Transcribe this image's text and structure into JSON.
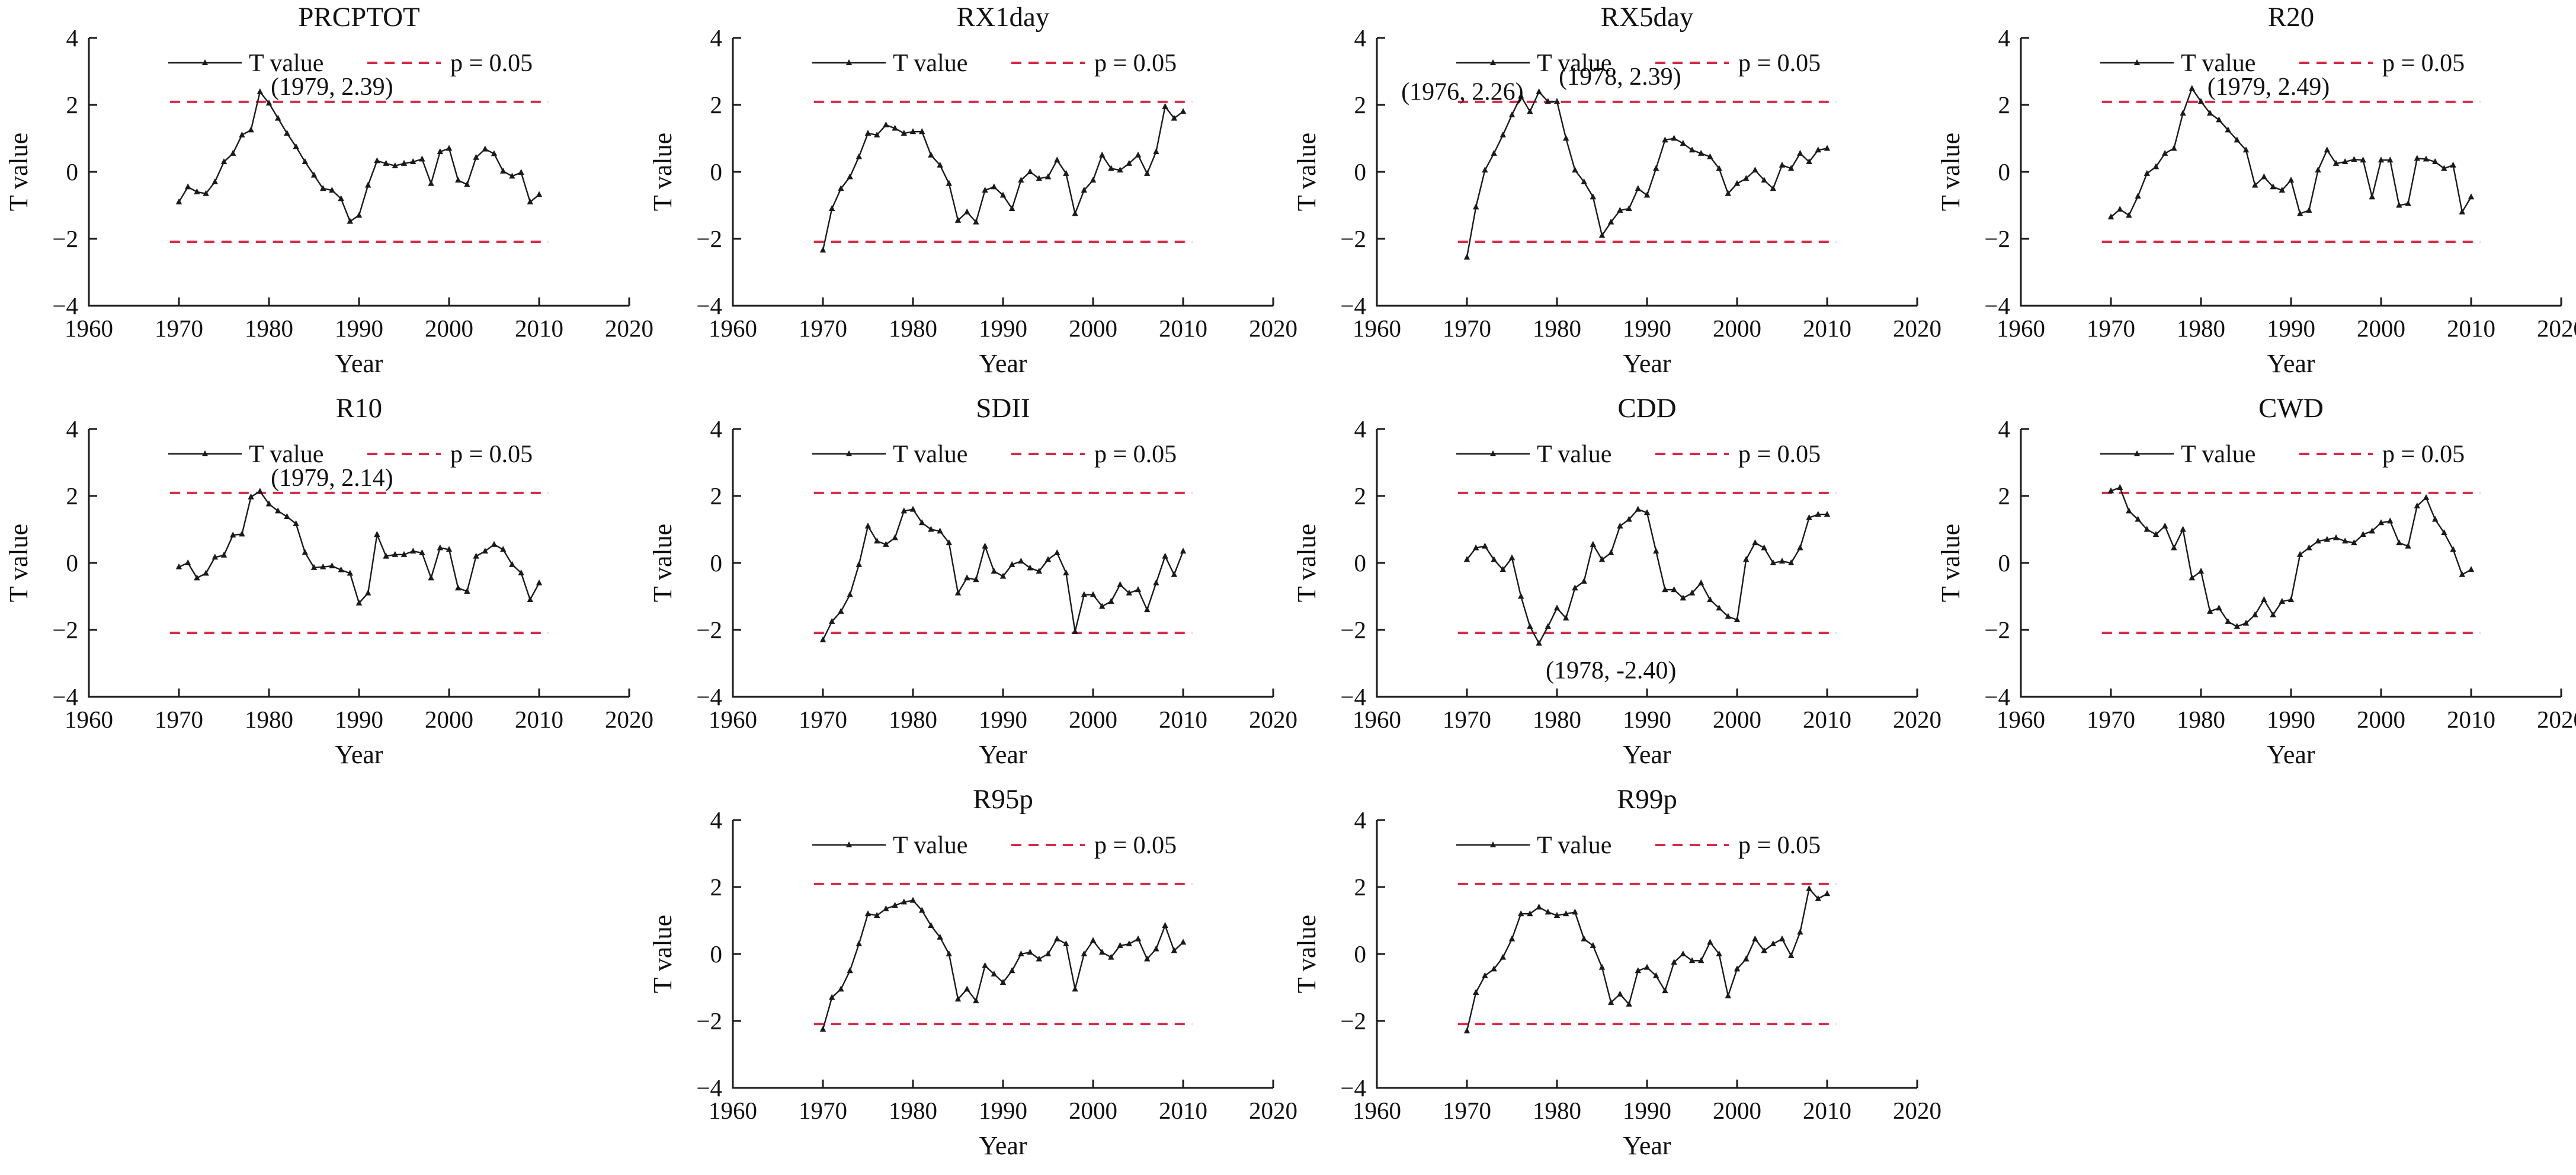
{
  "figure": {
    "xlabel": "Year",
    "ylabel": "T value",
    "xlim": [
      1960,
      2020
    ],
    "ylim": [
      -4,
      4
    ],
    "xticks": [
      1960,
      1970,
      1980,
      1990,
      2000,
      2010,
      2020
    ],
    "yticks": [
      -4,
      -2,
      0,
      2,
      4
    ],
    "legend": {
      "series_label": "T value",
      "threshold_label": "p = 0.05",
      "position": "top-center-inside"
    },
    "threshold_value": 2.09,
    "threshold_x_span": [
      1969,
      2011
    ],
    "grid": "off",
    "colors": {
      "line": "#1a1a1a",
      "marker": "#1a1a1a",
      "threshold": "#d62b47",
      "text": "#111111",
      "background": "#ffffff"
    }
  },
  "chart_data": [
    {
      "type": "line",
      "title": "PRCPTOT",
      "row": 0,
      "col": 0,
      "x_start": 1970,
      "x_end": 2010,
      "values": [
        -0.9,
        -0.45,
        -0.6,
        -0.65,
        -0.3,
        0.3,
        0.55,
        1.1,
        1.25,
        2.39,
        2.05,
        1.6,
        1.15,
        0.75,
        0.3,
        -0.1,
        -0.5,
        -0.55,
        -0.8,
        -1.48,
        -1.3,
        -0.4,
        0.33,
        0.25,
        0.18,
        0.25,
        0.3,
        0.38,
        -0.35,
        0.6,
        0.7,
        -0.25,
        -0.38,
        0.43,
        0.68,
        0.54,
        0.02,
        -0.13,
        -0.02,
        -0.9,
        -0.68
      ],
      "annotations": [
        {
          "text": "(1979, 2.39)",
          "x": 1987,
          "y": 2.55
        }
      ]
    },
    {
      "type": "line",
      "title": "RX1day",
      "row": 0,
      "col": 1,
      "x_start": 1970,
      "x_end": 2010,
      "values": [
        -2.34,
        -1.1,
        -0.5,
        -0.15,
        0.45,
        1.15,
        1.1,
        1.4,
        1.3,
        1.15,
        1.2,
        1.2,
        0.5,
        0.2,
        -0.35,
        -1.45,
        -1.2,
        -1.5,
        -0.55,
        -0.45,
        -0.7,
        -1.1,
        -0.25,
        0.0,
        -0.2,
        -0.15,
        0.35,
        -0.05,
        -1.25,
        -0.55,
        -0.25,
        0.5,
        0.1,
        0.05,
        0.25,
        0.5,
        -0.05,
        0.6,
        1.95,
        1.6,
        1.8
      ],
      "annotations": []
    },
    {
      "type": "line",
      "title": "RX5day",
      "row": 0,
      "col": 2,
      "x_start": 1970,
      "x_end": 2010,
      "values": [
        -2.55,
        -1.05,
        0.05,
        0.55,
        1.1,
        1.7,
        2.26,
        1.8,
        2.39,
        2.1,
        2.1,
        1.0,
        0.05,
        -0.3,
        -0.75,
        -1.9,
        -1.5,
        -1.15,
        -1.1,
        -0.5,
        -0.7,
        0.1,
        0.95,
        1.0,
        0.85,
        0.65,
        0.55,
        0.45,
        0.1,
        -0.65,
        -0.35,
        -0.2,
        0.05,
        -0.25,
        -0.5,
        0.2,
        0.1,
        0.55,
        0.3,
        0.65,
        0.7
      ],
      "annotations": [
        {
          "text": "(1976, 2.26)",
          "x": 1969.5,
          "y": 2.4
        },
        {
          "text": "(1978, 2.39)",
          "x": 1987,
          "y": 2.85
        }
      ]
    },
    {
      "type": "line",
      "title": "R20",
      "row": 0,
      "col": 3,
      "x_start": 1970,
      "x_end": 2010,
      "values": [
        -1.35,
        -1.12,
        -1.3,
        -0.73,
        -0.05,
        0.15,
        0.55,
        0.7,
        1.75,
        2.49,
        2.1,
        1.75,
        1.55,
        1.25,
        0.95,
        0.65,
        -0.4,
        -0.15,
        -0.45,
        -0.55,
        -0.25,
        -1.25,
        -1.15,
        0.05,
        0.65,
        0.25,
        0.3,
        0.37,
        0.35,
        -0.75,
        0.35,
        0.35,
        -1.0,
        -0.95,
        0.4,
        0.38,
        0.3,
        0.1,
        0.2,
        -1.2,
        -0.75
      ],
      "annotations": [
        {
          "text": "(1979, 2.49)",
          "x": 1987.5,
          "y": 2.55
        }
      ]
    },
    {
      "type": "line",
      "title": "R10",
      "row": 1,
      "col": 0,
      "x_start": 1970,
      "x_end": 2010,
      "values": [
        -0.12,
        0.0,
        -0.45,
        -0.31,
        0.17,
        0.23,
        0.83,
        0.86,
        1.97,
        2.14,
        1.76,
        1.55,
        1.38,
        1.17,
        0.31,
        -0.14,
        -0.12,
        -0.09,
        -0.21,
        -0.31,
        -1.2,
        -0.9,
        0.85,
        0.2,
        0.25,
        0.25,
        0.35,
        0.3,
        -0.45,
        0.45,
        0.4,
        -0.75,
        -0.85,
        0.2,
        0.35,
        0.55,
        0.4,
        -0.05,
        -0.3,
        -1.1,
        -0.6
      ],
      "annotations": [
        {
          "text": "(1979, 2.14)",
          "x": 1987,
          "y": 2.55
        }
      ]
    },
    {
      "type": "line",
      "title": "SDII",
      "row": 1,
      "col": 1,
      "x_start": 1970,
      "x_end": 2010,
      "values": [
        -2.3,
        -1.75,
        -1.45,
        -0.95,
        -0.05,
        1.1,
        0.65,
        0.55,
        0.75,
        1.55,
        1.6,
        1.2,
        1.0,
        0.95,
        0.6,
        -0.9,
        -0.45,
        -0.5,
        0.5,
        -0.25,
        -0.4,
        -0.05,
        0.05,
        -0.15,
        -0.25,
        0.1,
        0.3,
        -0.3,
        -2.05,
        -0.95,
        -0.95,
        -1.3,
        -1.15,
        -0.65,
        -0.9,
        -0.8,
        -1.4,
        -0.6,
        0.2,
        -0.35,
        0.35
      ],
      "annotations": []
    },
    {
      "type": "line",
      "title": "CDD",
      "row": 1,
      "col": 2,
      "x_start": 1970,
      "x_end": 2010,
      "values": [
        0.1,
        0.45,
        0.5,
        0.1,
        -0.2,
        0.15,
        -1.0,
        -1.9,
        -2.4,
        -1.9,
        -1.35,
        -1.65,
        -0.75,
        -0.55,
        0.55,
        0.1,
        0.3,
        1.1,
        1.3,
        1.6,
        1.5,
        0.35,
        -0.8,
        -0.8,
        -1.05,
        -0.9,
        -0.6,
        -1.1,
        -1.35,
        -1.6,
        -1.7,
        0.1,
        0.6,
        0.45,
        0.0,
        0.05,
        0.0,
        0.45,
        1.35,
        1.45,
        1.45
      ],
      "annotations": [
        {
          "text": "(1978, -2.40)",
          "x": 1986,
          "y": -3.2
        }
      ]
    },
    {
      "type": "line",
      "title": "CWD",
      "row": 1,
      "col": 3,
      "x_start": 1970,
      "x_end": 2010,
      "values": [
        2.15,
        2.25,
        1.55,
        1.3,
        1.0,
        0.85,
        1.1,
        0.45,
        1.0,
        -0.45,
        -0.25,
        -1.45,
        -1.35,
        -1.75,
        -1.9,
        -1.8,
        -1.55,
        -1.1,
        -1.55,
        -1.15,
        -1.1,
        0.25,
        0.45,
        0.65,
        0.7,
        0.75,
        0.65,
        0.6,
        0.85,
        0.95,
        1.2,
        1.25,
        0.6,
        0.5,
        1.7,
        1.95,
        1.3,
        0.9,
        0.4,
        -0.35,
        -0.2
      ],
      "annotations": []
    },
    {
      "type": "line",
      "title": "R95p",
      "row": 2,
      "col": 1,
      "x_start": 1970,
      "x_end": 2010,
      "values": [
        -2.25,
        -1.3,
        -1.05,
        -0.5,
        0.3,
        1.2,
        1.15,
        1.35,
        1.45,
        1.55,
        1.6,
        1.3,
        0.85,
        0.5,
        0.0,
        -1.35,
        -1.05,
        -1.4,
        -0.35,
        -0.6,
        -0.85,
        -0.5,
        0.0,
        0.05,
        -0.15,
        0.0,
        0.45,
        0.3,
        -1.05,
        0.0,
        0.4,
        0.05,
        -0.1,
        0.25,
        0.3,
        0.45,
        -0.15,
        0.15,
        0.85,
        0.1,
        0.35
      ],
      "annotations": []
    },
    {
      "type": "line",
      "title": "R99p",
      "row": 2,
      "col": 2,
      "x_start": 1970,
      "x_end": 2010,
      "values": [
        -2.3,
        -1.15,
        -0.65,
        -0.45,
        -0.1,
        0.45,
        1.2,
        1.2,
        1.4,
        1.25,
        1.15,
        1.2,
        1.25,
        0.45,
        0.25,
        -0.4,
        -1.45,
        -1.2,
        -1.5,
        -0.5,
        -0.4,
        -0.65,
        -1.1,
        -0.25,
        0.0,
        -0.2,
        -0.2,
        0.35,
        0.0,
        -1.25,
        -0.45,
        -0.15,
        0.45,
        0.1,
        0.3,
        0.45,
        -0.05,
        0.65,
        1.95,
        1.65,
        1.8
      ],
      "annotations": []
    }
  ]
}
